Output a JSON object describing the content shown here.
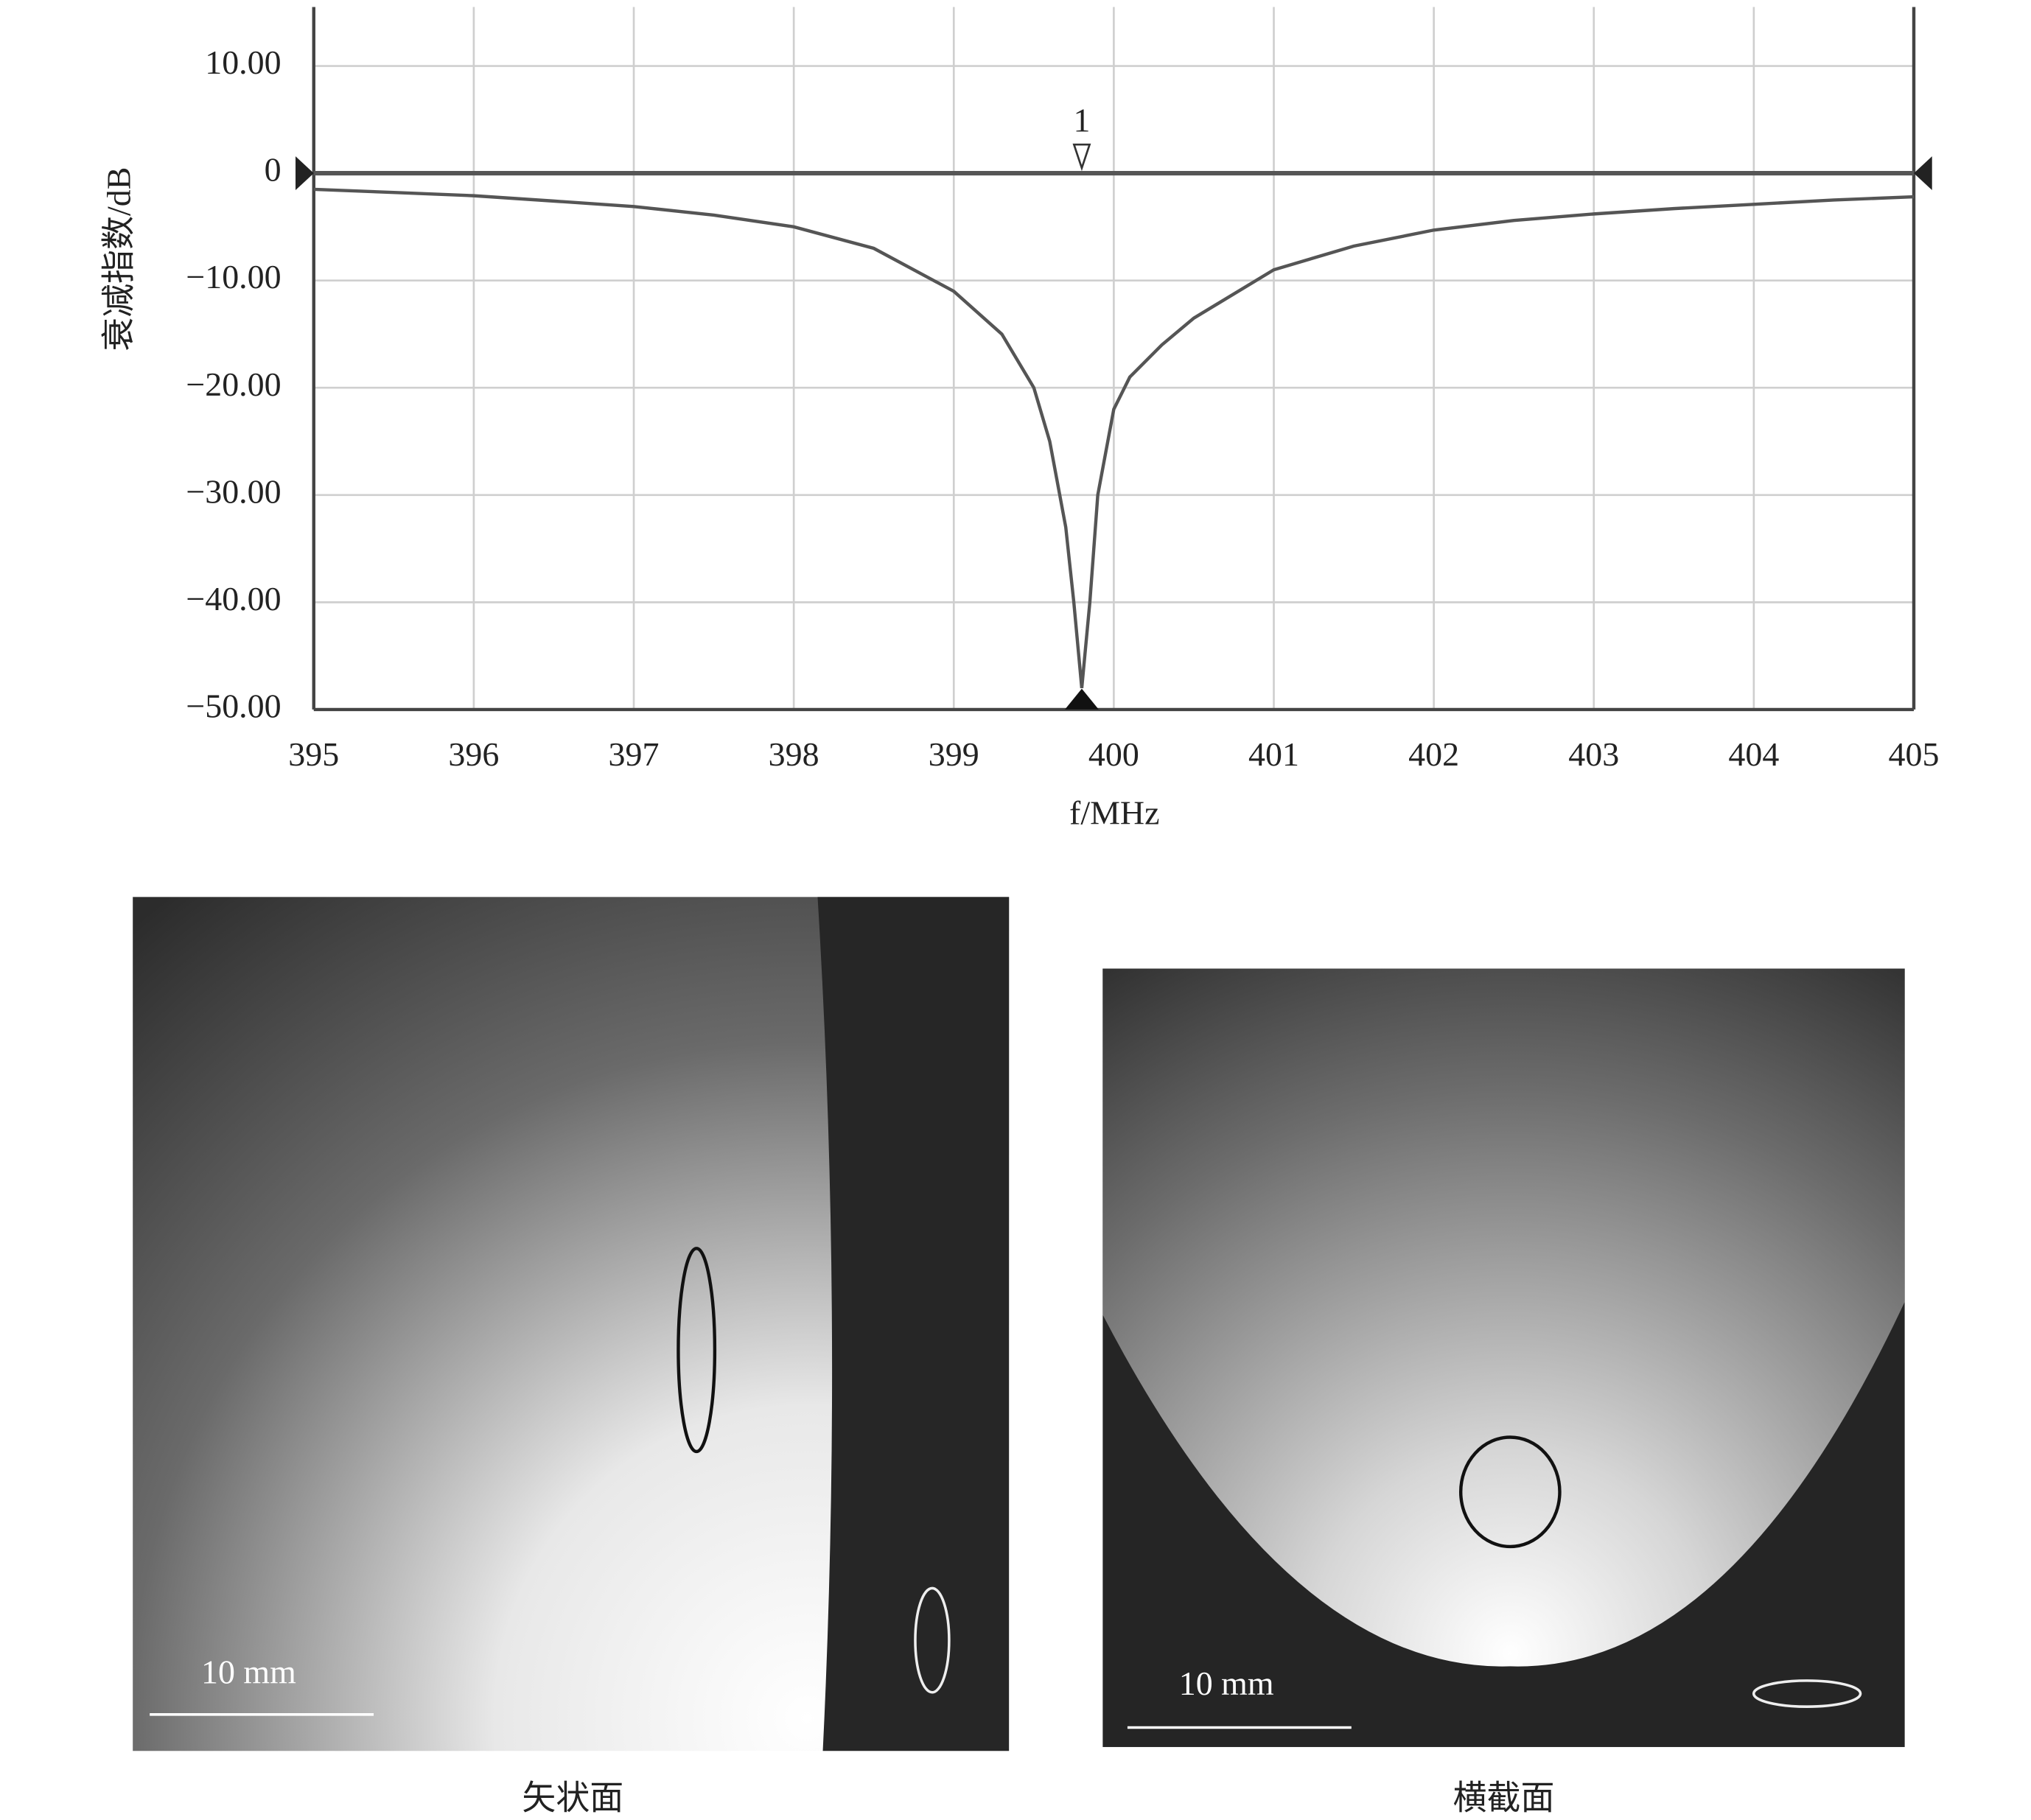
{
  "chart_data": {
    "type": "line",
    "x_label": "f/MHz",
    "y_label": "衰减指数/dB",
    "x": [
      395,
      395.5,
      396,
      396.5,
      397,
      397.5,
      398,
      398.5,
      399,
      399.3,
      399.5,
      399.6,
      399.7,
      399.75,
      399.8,
      399.85,
      399.9,
      400,
      400.1,
      400.3,
      400.5,
      401,
      401.5,
      402,
      402.5,
      403,
      403.5,
      404,
      404.5,
      405
    ],
    "values": [
      -1.5,
      -1.8,
      -2.1,
      -2.6,
      -3.1,
      -3.9,
      -5,
      -7,
      -11,
      -15,
      -20,
      -25,
      -33,
      -40,
      -48,
      -40,
      -30,
      -22,
      -19,
      -16,
      -13.5,
      -9,
      -6.8,
      -5.3,
      -4.4,
      -3.8,
      -3.3,
      -2.9,
      -2.5,
      -2.2
    ],
    "color": "#555555",
    "xlim": [
      395,
      405
    ],
    "ylim": [
      -50,
      15.5
    ],
    "xticks": [
      395,
      396,
      397,
      398,
      399,
      400,
      401,
      402,
      403,
      404,
      405
    ],
    "yticks": [
      {
        "value": 10,
        "label": "10.00"
      },
      0,
      {
        "value": -10,
        "label": "−10.00"
      },
      {
        "value": -20,
        "label": "−20.00"
      },
      {
        "value": -30,
        "label": "−30.00"
      },
      {
        "value": -40,
        "label": "−40.00"
      },
      {
        "value": -50,
        "label": "−50.00"
      }
    ],
    "grid": true,
    "reference_line": 0,
    "markers": [
      {
        "x": 399.8,
        "label": "1"
      }
    ]
  },
  "panels": [
    {
      "caption": "矢状面",
      "scale_label": "10 mm"
    },
    {
      "caption": "横截面",
      "scale_label": "10 mm"
    }
  ]
}
